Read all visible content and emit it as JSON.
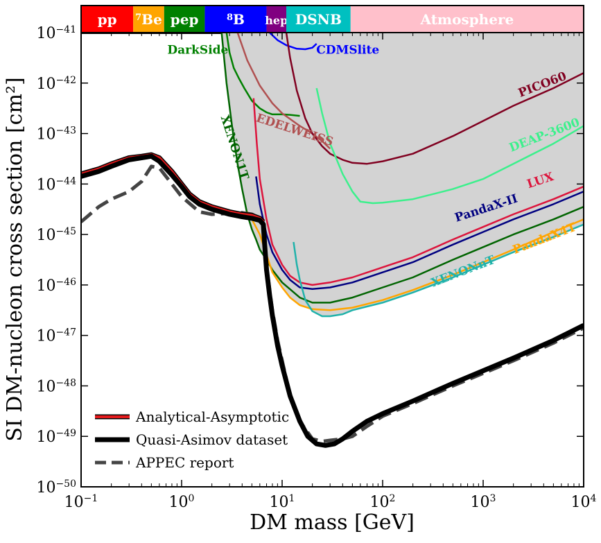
{
  "chart_data": {
    "type": "line",
    "xlabel": "DM mass [GeV]",
    "ylabel": "SI DM-nucleon cross section [cm²]",
    "xscale": "log",
    "yscale": "log",
    "xlim": [
      0.1,
      10000
    ],
    "ylim": [
      1e-50,
      1e-41
    ],
    "x_ticks": [
      {
        "base": "10",
        "exp": "−1",
        "value": 0.1
      },
      {
        "base": "10",
        "exp": "0",
        "value": 1
      },
      {
        "base": "10",
        "exp": "1",
        "value": 10
      },
      {
        "base": "10",
        "exp": "2",
        "value": 100
      },
      {
        "base": "10",
        "exp": "3",
        "value": 1000
      },
      {
        "base": "10",
        "exp": "4",
        "value": 10000
      }
    ],
    "y_ticks": [
      {
        "base": "10",
        "exp": "−50",
        "value": -50
      },
      {
        "base": "10",
        "exp": "−49",
        "value": -49
      },
      {
        "base": "10",
        "exp": "−48",
        "value": -48
      },
      {
        "base": "10",
        "exp": "−47",
        "value": -47
      },
      {
        "base": "10",
        "exp": "−46",
        "value": -46
      },
      {
        "base": "10",
        "exp": "−45",
        "value": -45
      },
      {
        "base": "10",
        "exp": "−44",
        "value": -44
      },
      {
        "base": "10",
        "exp": "−43",
        "value": -43
      },
      {
        "base": "10",
        "exp": "−42",
        "value": -42
      },
      {
        "base": "10",
        "exp": "−41",
        "value": -41
      }
    ],
    "grid": false,
    "legend_position": "bottom-left",
    "neutrino_bands": [
      {
        "label": "pp",
        "sup": "",
        "x_from": 0.1,
        "x_to": 0.33,
        "color": "#ff0000"
      },
      {
        "label": "Be",
        "sup": "7",
        "x_from": 0.33,
        "x_to": 0.67,
        "color": "#ffa500"
      },
      {
        "label": "pep",
        "sup": "",
        "x_from": 0.67,
        "x_to": 1.7,
        "color": "#008000"
      },
      {
        "label": "B",
        "sup": "8",
        "x_from": 1.7,
        "x_to": 7.0,
        "color": "#0000ff"
      },
      {
        "label": "hep",
        "sup": "",
        "x_from": 7.0,
        "x_to": 11.0,
        "color": "#800080"
      },
      {
        "label": "DSNB",
        "sup": "",
        "x_from": 11.0,
        "x_to": 48.0,
        "color": "#00c0c0"
      },
      {
        "label": "Atmosphere",
        "sup": "",
        "x_from": 48.0,
        "x_to": 10000,
        "color": "#ffc0cb"
      }
    ],
    "excluded_region_color": "#d3d3d3",
    "series": [
      {
        "name": "Analytical-Asymptotic",
        "color": "#e41a1c",
        "outline": "#000000",
        "width": 4,
        "legend": true,
        "x": [
          0.1,
          0.15,
          0.2,
          0.3,
          0.4,
          0.5,
          0.6,
          0.8,
          1.0,
          1.2,
          1.5,
          2,
          3,
          4,
          5,
          6,
          6.5
        ],
        "y": [
          -43.8,
          -43.7,
          -43.6,
          -43.48,
          -43.45,
          -43.42,
          -43.48,
          -43.75,
          -44.0,
          -44.2,
          -44.35,
          -44.45,
          -44.55,
          -44.6,
          -44.62,
          -44.68,
          -44.75
        ]
      },
      {
        "name": "Quasi-Asimov dataset",
        "color": "#000000",
        "width": 7,
        "legend": true,
        "x": [
          0.1,
          0.15,
          0.2,
          0.3,
          0.4,
          0.5,
          0.6,
          0.8,
          1.0,
          1.2,
          1.5,
          2,
          3,
          4,
          5,
          6,
          6.5,
          6.7,
          7,
          7.5,
          8,
          9,
          10,
          12,
          15,
          18,
          22,
          27,
          33,
          40,
          50,
          70,
          100,
          200,
          500,
          1000,
          2000,
          5000,
          10000
        ],
        "y": [
          -43.85,
          -43.75,
          -43.65,
          -43.52,
          -43.48,
          -43.45,
          -43.55,
          -43.82,
          -44.05,
          -44.25,
          -44.4,
          -44.5,
          -44.6,
          -44.65,
          -44.68,
          -44.72,
          -44.8,
          -45.2,
          -45.7,
          -46.2,
          -46.6,
          -47.2,
          -47.6,
          -48.2,
          -48.7,
          -49.0,
          -49.15,
          -49.18,
          -49.15,
          -49.05,
          -48.9,
          -48.7,
          -48.55,
          -48.3,
          -47.95,
          -47.7,
          -47.45,
          -47.1,
          -46.8
        ]
      },
      {
        "name": "APPEC report",
        "color": "#444444",
        "width": 5,
        "dash": "20,9",
        "legend": true,
        "x": [
          0.1,
          0.15,
          0.2,
          0.3,
          0.4,
          0.5,
          0.6,
          0.8,
          1.0,
          1.5,
          2,
          3,
          4,
          5,
          6,
          6.5,
          6.7,
          7,
          7.5,
          8,
          9,
          10,
          12,
          15,
          20,
          25,
          30,
          40,
          50,
          70,
          100,
          200,
          500,
          1000,
          2000,
          5000,
          10000
        ],
        "y": [
          -44.75,
          -44.45,
          -44.3,
          -44.15,
          -43.95,
          -43.65,
          -43.68,
          -44.0,
          -44.25,
          -44.55,
          -44.6,
          -44.58,
          -44.57,
          -44.6,
          -44.68,
          -44.78,
          -45.1,
          -45.6,
          -46.1,
          -46.5,
          -47.1,
          -47.5,
          -48.2,
          -48.7,
          -49.05,
          -49.1,
          -49.08,
          -49.05,
          -49.0,
          -48.8,
          -48.6,
          -48.35,
          -48.0,
          -47.75,
          -47.5,
          -47.15,
          -46.85
        ]
      },
      {
        "name": "DarkSide",
        "color": "#008000",
        "width": 2.5,
        "legend": false,
        "x": [
          2.8,
          3.0,
          3.3,
          3.7,
          4.2,
          5,
          6,
          7,
          8,
          10,
          12,
          15
        ],
        "y": [
          -41.0,
          -41.4,
          -41.7,
          -41.9,
          -42.1,
          -42.35,
          -42.5,
          -42.58,
          -42.62,
          -42.62,
          -42.63,
          -42.65
        ]
      },
      {
        "name": "XENON1T",
        "color": "#006400",
        "width": 2.5,
        "legend": false,
        "x": [
          2.5,
          2.8,
          3.2,
          3.6,
          4,
          4.5,
          5,
          5.5,
          6,
          7,
          8,
          10,
          15,
          20,
          30,
          50,
          100,
          200,
          500,
          1000,
          2000,
          5000,
          10000
        ],
        "y": [
          -41.0,
          -42.0,
          -42.9,
          -43.6,
          -44.1,
          -44.6,
          -44.9,
          -45.1,
          -45.3,
          -45.5,
          -45.7,
          -45.95,
          -46.25,
          -46.35,
          -46.35,
          -46.25,
          -46.05,
          -45.85,
          -45.5,
          -45.25,
          -45.0,
          -44.7,
          -44.45
        ]
      },
      {
        "name": "PandaX-II",
        "color": "#000080",
        "width": 2.5,
        "legend": false,
        "x": [
          5.5,
          6,
          7,
          8,
          10,
          12,
          15,
          20,
          30,
          50,
          100,
          200,
          500,
          1000,
          2000,
          5000,
          10000
        ],
        "y": [
          -43.85,
          -44.4,
          -45.0,
          -45.35,
          -45.7,
          -45.9,
          -46.05,
          -46.08,
          -46.05,
          -45.95,
          -45.75,
          -45.55,
          -45.2,
          -44.95,
          -44.7,
          -44.4,
          -44.15
        ]
      },
      {
        "name": "LUX",
        "color": "#dc143c",
        "width": 2.5,
        "legend": false,
        "x": [
          5.2,
          5.6,
          6,
          7,
          8,
          10,
          12,
          15,
          20,
          30,
          50,
          100,
          200,
          500,
          1000,
          2000,
          5000,
          10000
        ],
        "y": [
          -42.3,
          -43.2,
          -43.9,
          -44.7,
          -45.2,
          -45.6,
          -45.82,
          -45.95,
          -46.0,
          -45.95,
          -45.85,
          -45.65,
          -45.45,
          -45.1,
          -44.85,
          -44.6,
          -44.3,
          -44.05
        ]
      },
      {
        "name": "PandaX4T",
        "color": "#ffa500",
        "width": 2.5,
        "legend": false,
        "x": [
          4.5,
          5,
          6,
          7,
          8,
          10,
          12,
          15,
          20,
          30,
          50,
          100,
          200,
          500,
          1000,
          2000,
          5000,
          10000
        ],
        "y": [
          -44.55,
          -44.7,
          -45.0,
          -45.4,
          -45.75,
          -46.05,
          -46.25,
          -46.4,
          -46.48,
          -46.5,
          -46.45,
          -46.3,
          -46.1,
          -45.8,
          -45.55,
          -45.3,
          -44.95,
          -44.7
        ]
      },
      {
        "name": "XENONnT",
        "color": "#20b2aa",
        "width": 2.5,
        "legend": false,
        "x": [
          13,
          14,
          15,
          17,
          20,
          25,
          30,
          40,
          50,
          100,
          200,
          500,
          1000,
          2000,
          5000,
          10000
        ],
        "y": [
          -45.15,
          -45.6,
          -45.9,
          -46.3,
          -46.52,
          -46.62,
          -46.62,
          -46.58,
          -46.5,
          -46.35,
          -46.15,
          -45.85,
          -45.6,
          -45.35,
          -45.05,
          -44.8
        ]
      },
      {
        "name": "EDELWEISS",
        "color": "#b05050",
        "width": 2.5,
        "legend": false,
        "x": [
          3.6,
          4.5,
          6,
          8,
          10,
          15,
          20,
          25,
          30
        ],
        "y": [
          -41.0,
          -41.55,
          -42.05,
          -42.4,
          -42.6,
          -42.85,
          -43.0,
          -43.15,
          -43.3
        ]
      },
      {
        "name": "CDMSlite",
        "color": "#0000ff",
        "width": 2.5,
        "legend": false,
        "x": [
          7.5,
          9,
          11,
          14,
          17,
          20,
          22
        ],
        "y": [
          -41.0,
          -41.15,
          -41.25,
          -41.32,
          -41.33,
          -41.3,
          -41.22
        ]
      },
      {
        "name": "PICO60",
        "color": "#800020",
        "width": 2.5,
        "legend": false,
        "x": [
          11,
          12,
          14,
          17,
          20,
          25,
          30,
          40,
          50,
          70,
          100,
          200,
          500,
          1000,
          2000,
          5000,
          10000
        ],
        "y": [
          -41.0,
          -41.5,
          -42.15,
          -42.7,
          -43.0,
          -43.25,
          -43.4,
          -43.52,
          -43.58,
          -43.6,
          -43.55,
          -43.4,
          -43.05,
          -42.75,
          -42.45,
          -42.1,
          -41.8
        ]
      },
      {
        "name": "DEAP-3600",
        "color": "#3cf08c",
        "width": 2.5,
        "legend": false,
        "x": [
          22,
          25,
          30,
          40,
          50,
          60,
          80,
          100,
          200,
          500,
          1000,
          2000,
          5000,
          10000
        ],
        "y": [
          -42.1,
          -42.6,
          -43.2,
          -43.8,
          -44.15,
          -44.35,
          -44.38,
          -44.37,
          -44.3,
          -44.1,
          -43.9,
          -43.6,
          -43.2,
          -42.85
        ]
      }
    ],
    "annotations": [
      {
        "text": "DarkSide",
        "x": 1.45,
        "y": -41.42,
        "rotate": 0,
        "color": "#008000"
      },
      {
        "text": "CDMSlite",
        "x": 45,
        "y": -41.42,
        "rotate": 0,
        "color": "#0000ff"
      },
      {
        "text": "PICO60",
        "x": 4000,
        "y": -42.1,
        "rotate": -21,
        "color": "#800020"
      },
      {
        "text": "EDELWEISS",
        "x": 13,
        "y": -43.0,
        "rotate": 18,
        "color": "#b05050"
      },
      {
        "text": "XENON1T",
        "x": 3.1,
        "y": -43.3,
        "rotate": 72,
        "color": "#006400"
      },
      {
        "text": "DEAP-3600",
        "x": 4200,
        "y": -43.1,
        "rotate": -21,
        "color": "#3cf08c"
      },
      {
        "text": "PandaX-II",
        "x": 1100,
        "y": -44.55,
        "rotate": -18,
        "color": "#000080"
      },
      {
        "text": "LUX",
        "x": 3800,
        "y": -44.0,
        "rotate": -18,
        "color": "#dc143c"
      },
      {
        "text": "PandaX4T",
        "x": 4200,
        "y": -45.15,
        "rotate": -21,
        "color": "#ffa500"
      },
      {
        "text": "XENONnT",
        "x": 650,
        "y": -45.8,
        "rotate": -21,
        "color": "#20b2aa"
      }
    ]
  }
}
